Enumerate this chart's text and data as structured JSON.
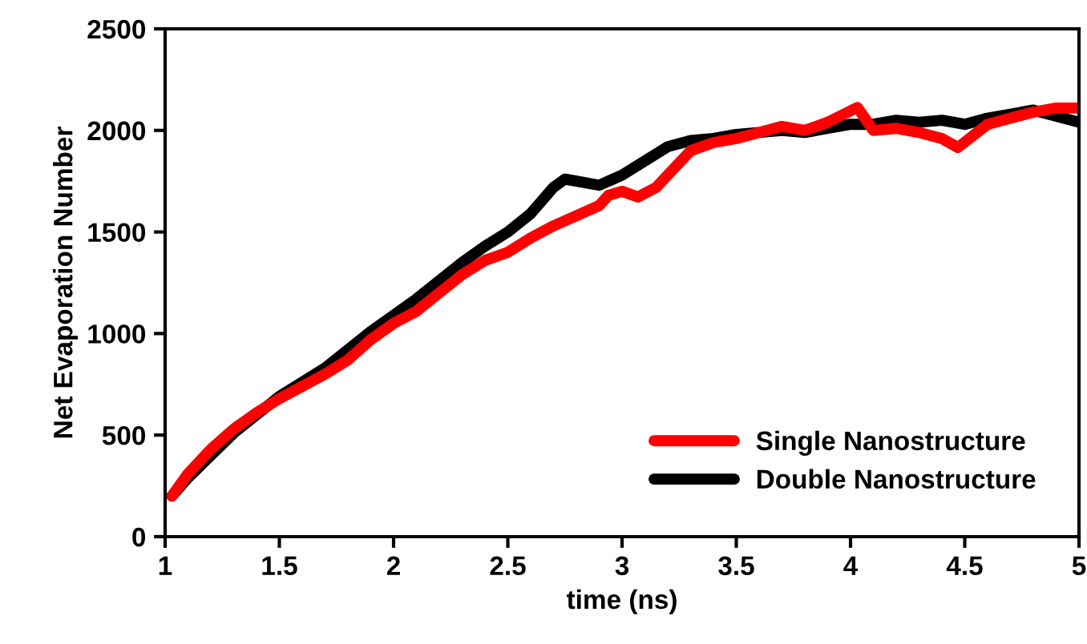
{
  "chart_data": {
    "type": "line",
    "xlabel": "time (ns)",
    "ylabel": "Net Evaporation Number",
    "xlim": [
      1,
      5
    ],
    "ylim": [
      0,
      2500
    ],
    "xticks": [
      1,
      1.5,
      2,
      2.5,
      3,
      3.5,
      4,
      4.5,
      5
    ],
    "yticks": [
      0,
      500,
      1000,
      1500,
      2000,
      2500
    ],
    "grid": false,
    "legend": "bottom right",
    "marker": "none",
    "line_style": "solid",
    "series": [
      {
        "name": "Double Nanostructure",
        "color": "#000000",
        "x": [
          1.03,
          1.1,
          1.2,
          1.3,
          1.4,
          1.5,
          1.6,
          1.7,
          1.8,
          1.9,
          2.0,
          2.1,
          2.2,
          2.3,
          2.4,
          2.5,
          2.6,
          2.7,
          2.75,
          2.8,
          2.9,
          3.0,
          3.1,
          3.2,
          3.3,
          3.4,
          3.5,
          3.6,
          3.7,
          3.8,
          3.9,
          4.0,
          4.1,
          4.2,
          4.3,
          4.4,
          4.5,
          4.6,
          4.7,
          4.8,
          4.9,
          5.0
        ],
        "values": [
          200,
          290,
          400,
          510,
          600,
          690,
          760,
          830,
          920,
          1010,
          1090,
          1170,
          1260,
          1350,
          1430,
          1500,
          1590,
          1720,
          1760,
          1750,
          1730,
          1780,
          1850,
          1920,
          1950,
          1960,
          1980,
          1990,
          2000,
          1990,
          2010,
          2030,
          2030,
          2050,
          2040,
          2050,
          2030,
          2060,
          2080,
          2100,
          2070,
          2040
        ]
      },
      {
        "name": "Single Nanostructure",
        "color": "#ff0000",
        "x": [
          1.03,
          1.1,
          1.2,
          1.3,
          1.4,
          1.5,
          1.6,
          1.7,
          1.8,
          1.9,
          2.0,
          2.1,
          2.2,
          2.3,
          2.4,
          2.5,
          2.6,
          2.7,
          2.8,
          2.9,
          2.94,
          3.0,
          3.07,
          3.15,
          3.2,
          3.3,
          3.4,
          3.5,
          3.6,
          3.7,
          3.8,
          3.9,
          4.03,
          4.1,
          4.2,
          4.3,
          4.4,
          4.47,
          4.6,
          4.7,
          4.8,
          4.9,
          5.0
        ],
        "values": [
          200,
          310,
          430,
          530,
          610,
          680,
          740,
          800,
          870,
          970,
          1050,
          1110,
          1200,
          1290,
          1360,
          1400,
          1470,
          1530,
          1580,
          1630,
          1680,
          1700,
          1672,
          1720,
          1780,
          1900,
          1940,
          1960,
          1990,
          2020,
          2000,
          2040,
          2113,
          2000,
          2010,
          1990,
          1960,
          1916,
          2030,
          2060,
          2090,
          2110,
          2110
        ]
      }
    ]
  }
}
